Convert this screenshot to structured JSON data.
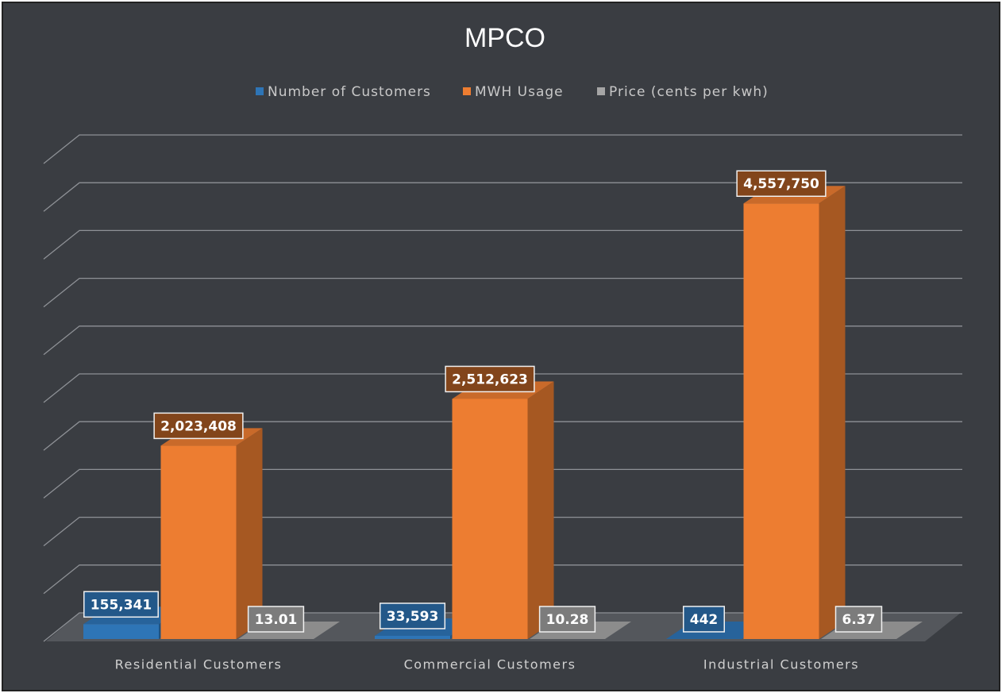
{
  "chart_data": {
    "type": "bar3d",
    "title": "MPCO",
    "categories": [
      "Residential Customers",
      "Commercial Customers",
      "Industrial Customers"
    ],
    "series": [
      {
        "name": "Number of Customers",
        "color": "#2e75b6",
        "values": [
          155341,
          33593,
          442
        ],
        "value_labels": [
          "155,341",
          "33,593",
          "442"
        ]
      },
      {
        "name": "MWH Usage",
        "color": "#ed7d31",
        "values": [
          2023408,
          2512623,
          4557750
        ],
        "value_labels": [
          "2,023,408",
          "2,512,623",
          "4,557,750"
        ]
      },
      {
        "name": "Price (cents per kwh)",
        "color": "#a5a5a5",
        "values": [
          13.01,
          10.28,
          6.37
        ]
      }
    ],
    "ylim": [
      0,
      5000000
    ],
    "yticks": [
      0,
      500000,
      1000000,
      1500000,
      2000000,
      2500000,
      3000000,
      3500000,
      4000000,
      4500000,
      5000000
    ],
    "grid": true,
    "legend": "top"
  }
}
